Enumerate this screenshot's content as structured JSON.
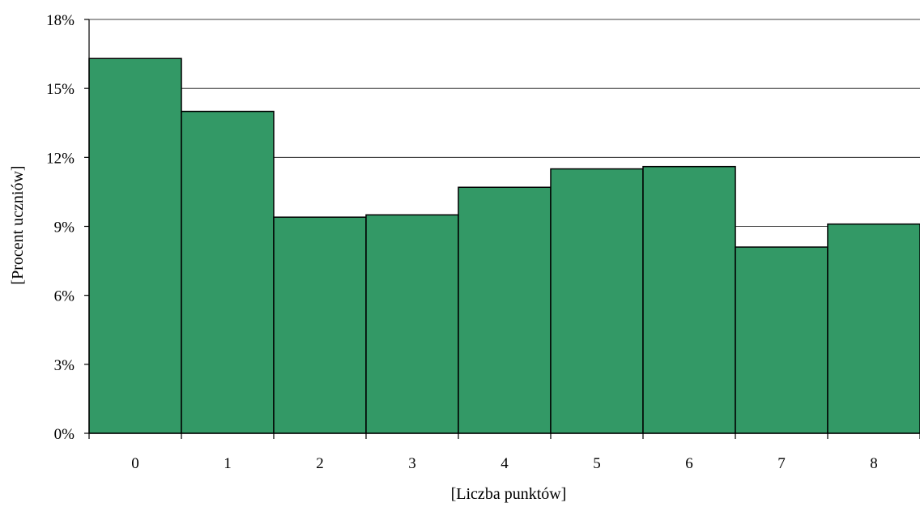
{
  "chart_data": {
    "type": "bar",
    "xlabel": "[Liczba punktów]",
    "ylabel": "[Procent uczniów]",
    "categories": [
      "0",
      "1",
      "2",
      "3",
      "4",
      "5",
      "6",
      "7",
      "8"
    ],
    "values": [
      16.3,
      14.0,
      9.4,
      9.5,
      10.7,
      11.5,
      11.6,
      8.1,
      9.1
    ],
    "ylim": [
      0,
      18
    ],
    "yticks": [
      0,
      3,
      6,
      9,
      12,
      15,
      18
    ],
    "ytick_labels": [
      "0%",
      "3%",
      "6%",
      "9%",
      "12%",
      "15%",
      "18%"
    ],
    "grid": true,
    "legend": "none",
    "bar_color": "#339966",
    "bar_edge_color": "#000000"
  }
}
